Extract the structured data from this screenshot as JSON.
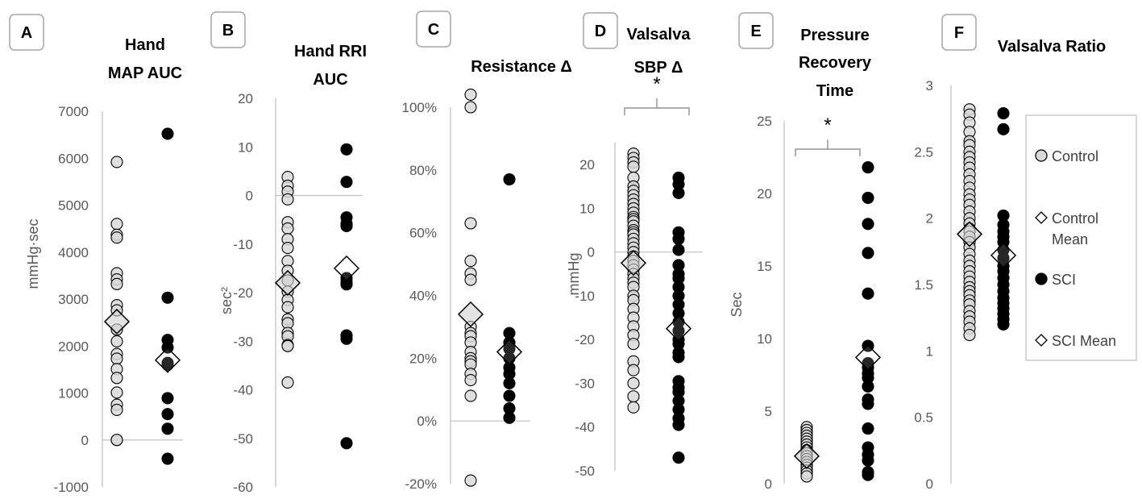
{
  "colors": {
    "control_fill": "#d9d9d9",
    "control_mean_fill": "#d0d0d0",
    "sci_fill": "#000000",
    "axis": "#bfbfbf",
    "text": "#595959"
  },
  "legend": {
    "control": "Control",
    "control_mean_1": "Control",
    "control_mean_2": "Mean",
    "sci": "SCI",
    "sci_mean": "SCI Mean"
  },
  "chart_data": [
    {
      "type": "scatter",
      "letter": "A",
      "title_lines": [
        "Hand",
        "MAP AUC"
      ],
      "ylabel": "mmHg·sec",
      "ylim": [
        -1000,
        7000
      ],
      "ticks": [
        7000,
        6000,
        5000,
        4000,
        3000,
        2000,
        1000,
        0,
        -1000
      ],
      "tick_labels": [
        "7000",
        "6000",
        "5000",
        "4000",
        "3000",
        "2000",
        "1000",
        "0",
        "-1000"
      ],
      "zero_line": true,
      "significance": "",
      "series": [
        {
          "name": "Control",
          "values": [
            5920,
            4600,
            4370,
            4310,
            3550,
            3420,
            3320,
            2870,
            2760,
            2350,
            2100,
            1830,
            1730,
            1510,
            1320,
            1010,
            750,
            640,
            0,
            0
          ],
          "mean": 2520
        },
        {
          "name": "SCI",
          "values": [
            6520,
            3030,
            2130,
            1970,
            1640,
            1600,
            890,
            550,
            240,
            -400
          ],
          "mean": 1700
        }
      ]
    },
    {
      "type": "scatter",
      "letter": "B",
      "title_lines": [
        "Hand RRI",
        "AUC"
      ],
      "ylabel": "sec²",
      "ylim": [
        -60,
        20
      ],
      "ticks": [
        20,
        10,
        0,
        -10,
        -20,
        -30,
        -40,
        -50,
        -60
      ],
      "tick_labels": [
        "20",
        "10",
        "0",
        "-10",
        "-20",
        "-30",
        "-40",
        "-50",
        "-60"
      ],
      "zero_line": true,
      "significance": "",
      "series": [
        {
          "name": "Control",
          "values": [
            3.8,
            2.0,
            0.8,
            -0.8,
            -5.5,
            -6.8,
            -9.0,
            -10.8,
            -13.5,
            -15.5,
            -17.5,
            -19.8,
            -21.5,
            -23.0,
            -25.5,
            -26.3,
            -28.3,
            -29.0,
            -30.8,
            -31.0,
            -38.5
          ],
          "mean": -18.0
        },
        {
          "name": "SCI",
          "values": [
            9.5,
            2.8,
            -4.5,
            -5.8,
            -6.3,
            -17.0,
            -17.8,
            -18.3,
            -28.8,
            -29.5,
            -51.0
          ],
          "mean": -15.0
        }
      ]
    },
    {
      "type": "scatter",
      "letter": "C",
      "title_lines": [
        "Resistance Δ"
      ],
      "ylabel": "",
      "ylim": [
        -20,
        100
      ],
      "ticks": [
        100,
        80,
        60,
        40,
        20,
        0,
        -20
      ],
      "tick_labels": [
        "100%",
        "80%",
        "60%",
        "40%",
        "20%",
        "0%",
        "-20%"
      ],
      "zero_line": true,
      "significance": "",
      "series": [
        {
          "name": "Control",
          "values": [
            104,
            100,
            63,
            51,
            47,
            45,
            30,
            28,
            27,
            25,
            22,
            20,
            19,
            18,
            15,
            13,
            8,
            -19
          ],
          "mean": 34
        },
        {
          "name": "SCI",
          "values": [
            77,
            28,
            25,
            23,
            20,
            17,
            15,
            12,
            8,
            4,
            1
          ],
          "mean": 22
        }
      ]
    },
    {
      "type": "scatter",
      "letter": "D",
      "title_lines": [
        "Valsalva",
        "SBP Δ"
      ],
      "ylabel": "mmHg",
      "ylim": [
        -50,
        25
      ],
      "ticks": [
        20,
        10,
        0,
        -10,
        -20,
        -30,
        -40,
        -50
      ],
      "tick_labels": [
        "20",
        "10",
        "0",
        "-10",
        "-20",
        "-30",
        "-40",
        "-50"
      ],
      "zero_line": true,
      "significance": "*",
      "series": [
        {
          "name": "Control",
          "values": [
            22.5,
            21.5,
            20.5,
            19.5,
            17,
            15,
            14,
            13,
            12,
            11,
            10,
            9,
            8,
            7.5,
            7,
            6,
            5,
            4.5,
            4,
            3,
            2,
            1,
            0,
            -1,
            -2,
            -3,
            -4,
            -5,
            -6,
            -7,
            -8,
            -10,
            -11,
            -13,
            -15,
            -17,
            -19,
            -21,
            -25,
            -27,
            -30,
            -33,
            -35.5
          ],
          "mean": -2.5
        },
        {
          "name": "SCI",
          "values": [
            17,
            15.5,
            13.5,
            4.5,
            3,
            0.5,
            -3,
            -5,
            -6,
            -8,
            -10,
            -12,
            -14,
            -16,
            -18,
            -20,
            -21,
            -23,
            -24,
            -29.5,
            -31,
            -32,
            -34,
            -36,
            -38,
            -39.5,
            -47
          ],
          "mean": -17.5
        }
      ]
    },
    {
      "type": "scatter",
      "letter": "E",
      "title_lines": [
        "Pressure",
        "Recovery",
        "Time"
      ],
      "ylabel": "Sec",
      "ylim": [
        0,
        25
      ],
      "ticks": [
        25,
        20,
        15,
        10,
        5,
        0
      ],
      "tick_labels": [
        "25",
        "20",
        "15",
        "10",
        "5",
        "0"
      ],
      "zero_line": false,
      "significance": "*",
      "series": [
        {
          "name": "Control",
          "values": [
            3.9,
            3.7,
            3.5,
            3.3,
            3.1,
            2.9,
            2.7,
            2.5,
            2.3,
            2.1,
            1.9,
            1.7,
            1.5,
            1.3,
            1.1,
            0.9,
            0.7,
            0.5
          ],
          "mean": 1.9
        },
        {
          "name": "SCI",
          "values": [
            21.8,
            19.7,
            17.9,
            15.9,
            13.1,
            9.5,
            8.3,
            8.0,
            7.6,
            7.3,
            6.7,
            5.8,
            5.5,
            3.8,
            2.5,
            2.0,
            1.6,
            0.8,
            0.6
          ],
          "mean": 8.7
        }
      ]
    },
    {
      "type": "scatter",
      "letter": "F",
      "title_lines": [
        "Valsalva Ratio"
      ],
      "ylabel": "",
      "ylim": [
        0,
        3
      ],
      "ticks": [
        3,
        2.5,
        2,
        1.5,
        1,
        0.5,
        0
      ],
      "tick_labels": [
        "3",
        "2.5",
        "2",
        "1.5",
        "1",
        "0.5",
        "0"
      ],
      "zero_line": false,
      "significance": "",
      "series": [
        {
          "name": "Control",
          "values": [
            2.82,
            2.78,
            2.72,
            2.65,
            2.58,
            2.55,
            2.5,
            2.46,
            2.42,
            2.38,
            2.33,
            2.28,
            2.23,
            2.18,
            2.14,
            2.1,
            2.05,
            2.0,
            1.96,
            1.92,
            1.9,
            1.86,
            1.82,
            1.78,
            1.73,
            1.68,
            1.64,
            1.6,
            1.56,
            1.52,
            1.48,
            1.45,
            1.42,
            1.38,
            1.35,
            1.3,
            1.26,
            1.22,
            1.17,
            1.12
          ],
          "mean": 1.88
        },
        {
          "name": "SCI",
          "values": [
            2.79,
            2.67,
            2.02,
            1.95,
            1.9,
            1.86,
            1.82,
            1.76,
            1.7,
            1.64,
            1.6,
            1.55,
            1.5,
            1.45,
            1.4,
            1.36,
            1.32,
            1.28,
            1.24,
            1.2
          ],
          "mean": 1.72
        }
      ]
    }
  ]
}
